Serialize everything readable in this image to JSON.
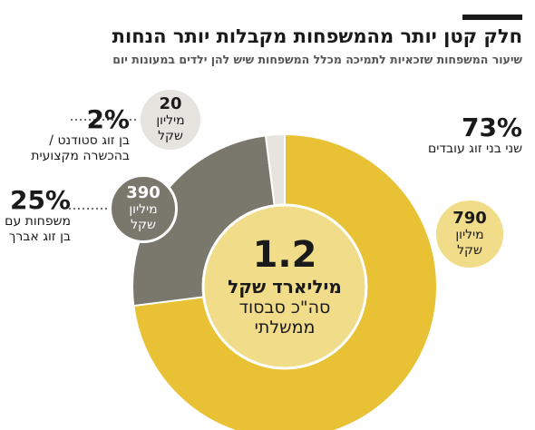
{
  "header": {
    "title": "חלק קטן יותר מהמשפחות מקבלות יותר הנחות",
    "subtitle": "שיעור המשפחות שזכאיות לתמיכה מכלל המשפחות שיש להן ילדים במעונות יום"
  },
  "center": {
    "total": "1.2",
    "total_unit": "מיליארד שקל",
    "note_line1": "סה\"כ סבסוד",
    "note_line2": "ממשלתי"
  },
  "segments": [
    {
      "percent_label": "73%",
      "desc_line1": "שני בני זוג עובדים",
      "desc_line2": "",
      "amount": "790",
      "unit_line1": "מיליון",
      "unit_line2": "שקל"
    },
    {
      "percent_label": "25%",
      "desc_line1": "משפחות עם",
      "desc_line2": "בן זוג אברך",
      "amount": "390",
      "unit_line1": "מיליון",
      "unit_line2": "שקל"
    },
    {
      "percent_label": "2%",
      "desc_line1": "בן זוג סטודנט /",
      "desc_line2": "בהכשרה מקצועית",
      "amount": "20",
      "unit_line1": "מיליון",
      "unit_line2": "שקל"
    }
  ],
  "chart_data": {
    "type": "pie",
    "title": "חלק קטן יותר מהמשפחות מקבלות יותר הנחות",
    "subtitle": "שיעור המשפחות שזכאיות לתמיכה מכלל המשפחות שיש להן ילדים במעונות יום",
    "categories": [
      "שני בני זוג עובדים",
      "משפחות עם בן זוג אברך",
      "בן זוג סטודנט / בהכשרה מקצועית"
    ],
    "values": [
      73,
      25,
      2
    ],
    "amounts_million_nis": [
      790,
      390,
      20
    ],
    "total": "1.2 מיליארד שקל"
  },
  "colors": {
    "yellow": "#e8c234",
    "yellow_inner": "#f1dc8a",
    "dark_gray": "#7a786d",
    "light_gray": "#e5e4df",
    "text": "#1a1a1a",
    "bubble_light": "#ffffff"
  }
}
